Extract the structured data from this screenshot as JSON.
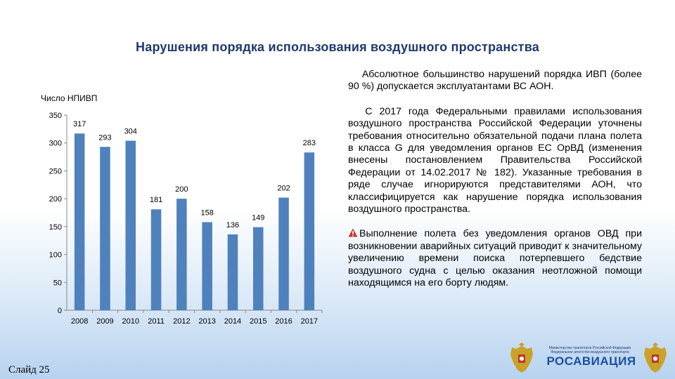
{
  "slide": {
    "title": "Нарушения порядка использования воздушного пространства",
    "footer": "Слайд  25"
  },
  "text": {
    "p1": "Абсолютное большинство нарушений порядка ИВП (более 90 %)  допускается эксплуатантами  ВС АОН.",
    "p2": "С 2017 года Федеральными правилами использования воздушного пространства Российской Федерации уточнены требования относительно обязательной подачи плана полета в класса G для уведомления органов ЕС ОрВД (изменения внесены постановлением Правительства Российской Федерации от 14.02.2017 № 182). Указанные требования в ряде случае игнорируются представителями АОН, что классифицируется как нарушение порядка использования воздушного пространства.",
    "p3": "Выполнение полета без уведомления органов ОВД при возникновении аварийных ситуаций приводит к значительному увеличению времени поиска потерпевшего бедствие воздушного судна с целью оказания неотложной помощи находящимся на его борту людям.",
    "warning_icon": "warning-triangle-icon"
  },
  "logo": {
    "ministry": "Министерство транспорта Российской Федерации Федеральное агентство воздушного транспорта",
    "brand": "РОСАВИАЦИЯ",
    "left_icon": "coat-of-arms-icon",
    "right_icon": "coat-of-arms-icon"
  },
  "chart_data": {
    "type": "bar",
    "title": "",
    "ylabel": "Число НПИВП",
    "xlabel": "",
    "categories": [
      "2008",
      "2009",
      "2010",
      "2011",
      "2012",
      "2013",
      "2014",
      "2015",
      "2016",
      "2017"
    ],
    "values": [
      317,
      293,
      304,
      181,
      200,
      158,
      136,
      149,
      202,
      283
    ],
    "ylim": [
      0,
      350
    ],
    "yticks": [
      0,
      50,
      100,
      150,
      200,
      250,
      300,
      350
    ],
    "grid": false,
    "bar_color": "#4f81bd",
    "data_labels": true
  }
}
